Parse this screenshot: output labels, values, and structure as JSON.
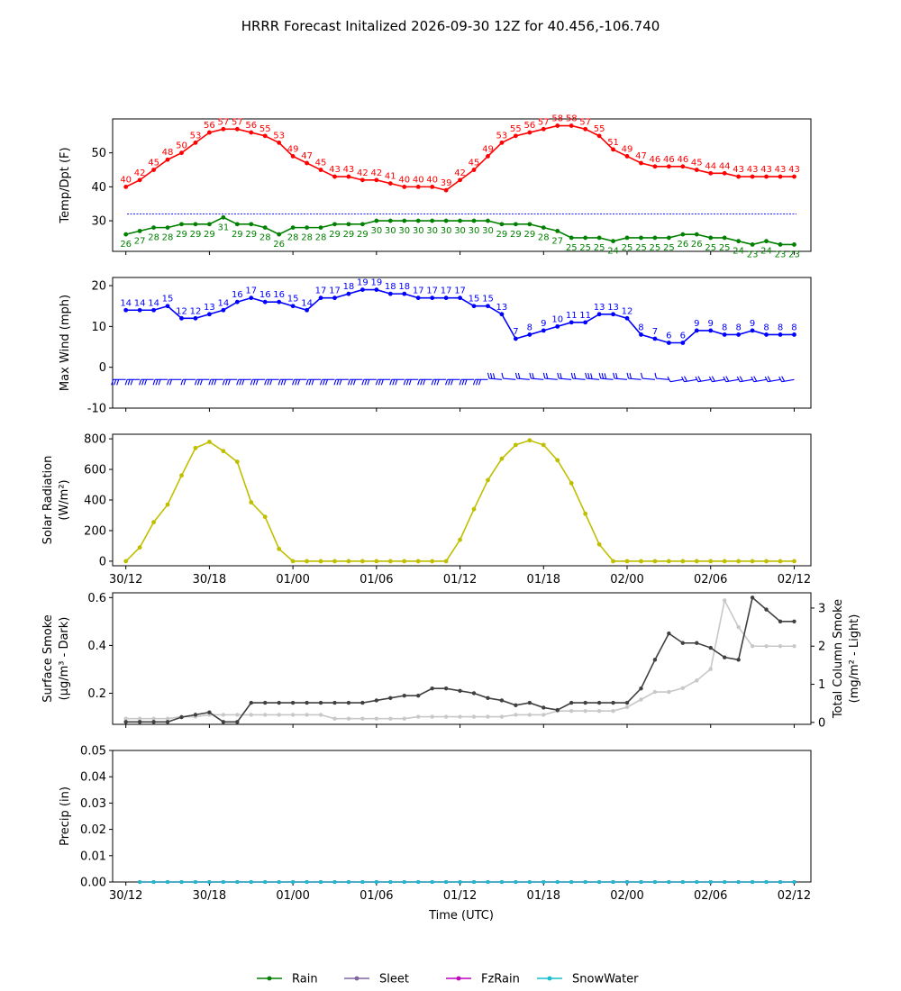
{
  "figure": {
    "title": "HRRR Forecast Initalized 2026-09-30 12Z for 40.456,-106.740",
    "xlabel": "Time (UTC)",
    "x_ticks": [
      "30/12",
      "30/18",
      "01/00",
      "01/06",
      "01/12",
      "01/18",
      "02/00",
      "02/06",
      "02/12"
    ]
  },
  "colors": {
    "temp": "#ff0000",
    "dewpoint": "#008000",
    "freezing_line": "#0000ff",
    "wind": "#0000ff",
    "solar": "#bfbf00",
    "surface_smoke": "#404040",
    "column_smoke": "#c8c8c8",
    "rain": "#008000",
    "sleet": "#8064a0",
    "fzrain": "#bf00bf",
    "snow": "#17becf"
  },
  "legend": {
    "placement": "bottom-center",
    "items": [
      {
        "label": "Rain",
        "color": "#008000"
      },
      {
        "label": "Sleet",
        "color": "#8064a0"
      },
      {
        "label": "FzRain",
        "color": "#bf00bf"
      },
      {
        "label": "SnowWater",
        "color": "#17becf"
      }
    ]
  },
  "chart_data": [
    {
      "type": "line",
      "ylabel": "Temp/Dpt (F)",
      "ylim": [
        21,
        60
      ],
      "yticks": [
        30,
        40,
        50
      ],
      "x_hours": [
        0,
        1,
        2,
        3,
        4,
        5,
        6,
        7,
        8,
        9,
        10,
        11,
        12,
        13,
        14,
        15,
        16,
        17,
        18,
        19,
        20,
        21,
        22,
        23,
        24,
        25,
        26,
        27,
        28,
        29,
        30,
        31,
        32,
        33,
        34,
        35,
        36,
        37,
        38,
        39,
        40,
        41,
        42,
        43,
        44,
        45,
        46,
        47,
        48
      ],
      "hline": 32,
      "series": [
        {
          "key": "temp",
          "values": [
            40,
            42,
            45,
            48,
            50,
            53,
            56,
            57,
            57,
            56,
            55,
            53,
            49,
            47,
            45,
            43,
            43,
            42,
            42,
            41,
            40,
            40,
            40,
            39,
            42,
            45,
            49,
            53,
            55,
            56,
            57,
            58,
            58,
            57,
            55,
            51,
            49,
            47,
            46,
            46,
            46,
            45,
            44,
            44,
            43,
            43,
            43,
            43,
            43
          ]
        },
        {
          "key": "dewpoint",
          "values": [
            26,
            27,
            28,
            28,
            29,
            29,
            29,
            31,
            29,
            29,
            28,
            26,
            28,
            28,
            28,
            29,
            29,
            29,
            30,
            30,
            30,
            30,
            30,
            30,
            30,
            30,
            30,
            29,
            29,
            29,
            28,
            27,
            25,
            25,
            25,
            24,
            25,
            25,
            25,
            25,
            26,
            26,
            25,
            25,
            24,
            23,
            24,
            23,
            23
          ]
        }
      ]
    },
    {
      "type": "line",
      "ylabel": "Max Wind (mph)",
      "ylim": [
        -10,
        22
      ],
      "yticks": [
        -10,
        0,
        10,
        20
      ],
      "x_hours": [
        0,
        1,
        2,
        3,
        4,
        5,
        6,
        7,
        8,
        9,
        10,
        11,
        12,
        13,
        14,
        15,
        16,
        17,
        18,
        19,
        20,
        21,
        22,
        23,
        24,
        25,
        26,
        27,
        28,
        29,
        30,
        31,
        32,
        33,
        34,
        35,
        36,
        37,
        38,
        39,
        40,
        41,
        42,
        43,
        44,
        45,
        46,
        47,
        48
      ],
      "series": [
        {
          "key": "wind",
          "values": [
            14,
            14,
            14,
            15,
            12,
            12,
            13,
            14,
            16,
            17,
            16,
            16,
            15,
            14,
            17,
            17,
            18,
            19,
            19,
            18,
            18,
            17,
            17,
            17,
            17,
            15,
            15,
            13,
            7,
            8,
            9,
            10,
            11,
            11,
            13,
            13,
            12,
            8,
            7,
            6,
            6,
            9,
            9,
            8,
            8,
            9,
            8,
            8,
            8
          ]
        }
      ],
      "barb_note": "wind barbs drawn along y=-3"
    },
    {
      "type": "line",
      "ylabel": "Solar Radiation (W/m²)",
      "ylim": [
        -30,
        830
      ],
      "yticks": [
        0,
        200,
        400,
        600,
        800
      ],
      "x_hours": [
        0,
        1,
        2,
        3,
        4,
        5,
        6,
        7,
        8,
        9,
        10,
        11,
        12,
        13,
        14,
        15,
        16,
        17,
        18,
        19,
        20,
        21,
        22,
        23,
        24,
        25,
        26,
        27,
        28,
        29,
        30,
        31,
        32,
        33,
        34,
        35,
        36,
        37,
        38,
        39,
        40,
        41,
        42,
        43,
        44,
        45,
        46,
        47,
        48
      ],
      "series": [
        {
          "key": "solar",
          "values": [
            0,
            90,
            255,
            370,
            560,
            740,
            780,
            720,
            650,
            385,
            290,
            80,
            0,
            0,
            0,
            0,
            0,
            0,
            0,
            0,
            0,
            0,
            0,
            0,
            140,
            340,
            530,
            670,
            760,
            790,
            760,
            660,
            510,
            310,
            110,
            0,
            0,
            0,
            0,
            0,
            0,
            0,
            0,
            0,
            0,
            0,
            0,
            0,
            0
          ]
        }
      ]
    },
    {
      "type": "line",
      "ylabel": "Surface Smoke (μg/m³ - Dark)",
      "ylabel_right": "Total Column Smoke (mg/m² - Light)",
      "ylim": [
        0.07,
        0.62
      ],
      "yticks": [
        0.2,
        0.4,
        0.6
      ],
      "ylim_right": [
        -0.05,
        3.4
      ],
      "yticks_right": [
        0,
        1,
        2,
        3
      ],
      "x_hours": [
        0,
        1,
        2,
        3,
        4,
        5,
        6,
        7,
        8,
        9,
        10,
        11,
        12,
        13,
        14,
        15,
        16,
        17,
        18,
        19,
        20,
        21,
        22,
        23,
        24,
        25,
        26,
        27,
        28,
        29,
        30,
        31,
        32,
        33,
        34,
        35,
        36,
        37,
        38,
        39,
        40,
        41,
        42,
        43,
        44,
        45,
        46,
        47,
        48
      ],
      "series": [
        {
          "key": "surface_smoke",
          "axis": "left",
          "values": [
            0.08,
            0.08,
            0.08,
            0.08,
            0.1,
            0.11,
            0.12,
            0.08,
            0.08,
            0.16,
            0.16,
            0.16,
            0.16,
            0.16,
            0.16,
            0.16,
            0.16,
            0.16,
            0.17,
            0.18,
            0.19,
            0.19,
            0.22,
            0.22,
            0.21,
            0.2,
            0.18,
            0.17,
            0.15,
            0.16,
            0.14,
            0.13,
            0.16,
            0.16,
            0.16,
            0.16,
            0.16,
            0.22,
            0.34,
            0.45,
            0.41,
            0.41,
            0.39,
            0.35,
            0.34,
            0.6,
            0.55,
            0.5,
            0.5
          ]
        },
        {
          "key": "column_smoke",
          "axis": "right",
          "values": [
            0.1,
            0.1,
            0.1,
            0.1,
            0.15,
            0.15,
            0.2,
            0.2,
            0.2,
            0.2,
            0.2,
            0.2,
            0.2,
            0.2,
            0.2,
            0.1,
            0.1,
            0.1,
            0.1,
            0.1,
            0.1,
            0.15,
            0.15,
            0.15,
            0.15,
            0.15,
            0.15,
            0.15,
            0.2,
            0.2,
            0.2,
            0.3,
            0.3,
            0.3,
            0.3,
            0.3,
            0.4,
            0.6,
            0.8,
            0.8,
            0.9,
            1.1,
            1.4,
            3.2,
            2.5,
            2.0,
            2.0,
            2.0,
            2.0
          ]
        }
      ]
    },
    {
      "type": "line",
      "ylabel": "Precip (in)",
      "ylim": [
        0,
        0.05
      ],
      "yticks": [
        0.0,
        0.01,
        0.02,
        0.03,
        0.04,
        0.05
      ],
      "x_hours": [
        1,
        2,
        3,
        4,
        5,
        6,
        7,
        8,
        9,
        10,
        11,
        12,
        13,
        14,
        15,
        16,
        17,
        18,
        19,
        20,
        21,
        22,
        23,
        24,
        25,
        26,
        27,
        28,
        29,
        30,
        31,
        32,
        33,
        34,
        35,
        36,
        37,
        38,
        39,
        40,
        41,
        42,
        43,
        44,
        45,
        46,
        47,
        48
      ],
      "series": [
        {
          "key": "rain",
          "value_all": 0
        },
        {
          "key": "sleet",
          "value_all": 0
        },
        {
          "key": "fzrain",
          "value_all": 0
        },
        {
          "key": "snow",
          "value_all": 0
        }
      ]
    }
  ]
}
